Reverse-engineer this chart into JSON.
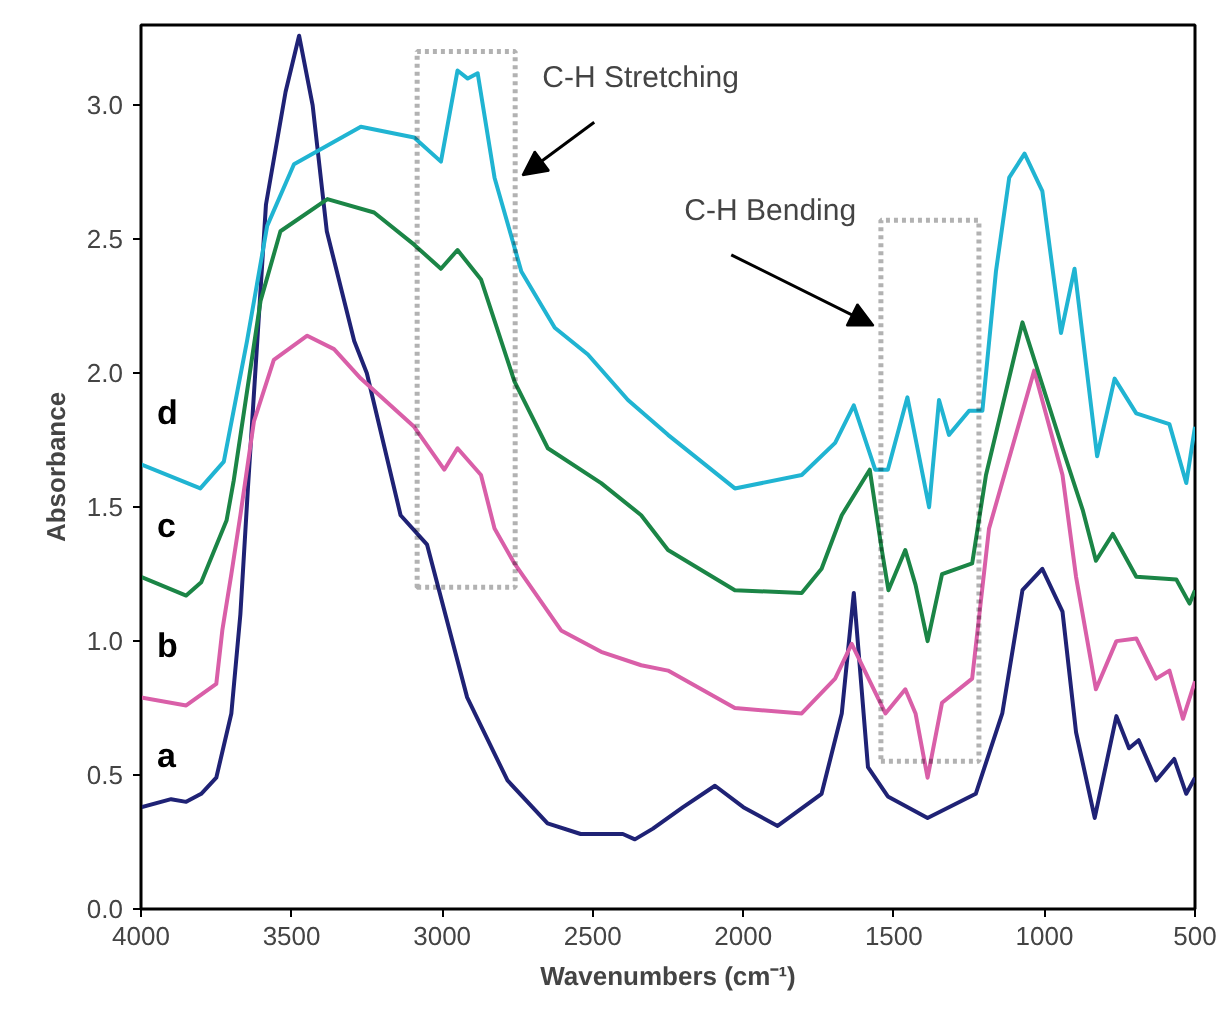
{
  "chart_data": {
    "type": "line",
    "xlabel": "Wavenumbers (cm⁻¹)",
    "ylabel": "Absorbance",
    "xlim": [
      4000,
      500
    ],
    "xticks": [
      4000,
      3500,
      3000,
      2500,
      2000,
      1500,
      1000,
      500
    ],
    "ylim": [
      0,
      3.3
    ],
    "yticks": [
      {
        "value": 0,
        "label": "0.0"
      },
      0.5,
      {
        "value": 1,
        "label": "1.0"
      },
      1.5,
      {
        "value": 2,
        "label": "2.0"
      },
      2.5,
      {
        "value": 3,
        "label": "3.0"
      }
    ],
    "grid": false,
    "legend": false,
    "marker": "none",
    "line_style": "solid",
    "series": [
      {
        "name": "a",
        "color": "#1f2275",
        "x": [
          4000,
          3900,
          3850,
          3800,
          3750,
          3700,
          3670,
          3645,
          3585,
          3520,
          3475,
          3430,
          3383,
          3292,
          3250,
          3138,
          3050,
          2917,
          2783,
          2650,
          2540,
          2400,
          2360,
          2300,
          2200,
          2094,
          2000,
          1886,
          1740,
          1673,
          1633,
          1586,
          1520,
          1388,
          1228,
          1140,
          1073,
          1007,
          940,
          895,
          833,
          761,
          719,
          687,
          629,
          569,
          529,
          500
        ],
        "values": [
          0.38,
          0.41,
          0.4,
          0.43,
          0.49,
          0.73,
          1.1,
          1.57,
          2.63,
          3.05,
          3.26,
          3.0,
          2.53,
          2.12,
          2.0,
          1.47,
          1.36,
          0.79,
          0.48,
          0.32,
          0.28,
          0.28,
          0.26,
          0.3,
          0.38,
          0.46,
          0.38,
          0.31,
          0.43,
          0.73,
          1.18,
          0.53,
          0.42,
          0.34,
          0.43,
          0.73,
          1.19,
          1.27,
          1.11,
          0.66,
          0.34,
          0.72,
          0.6,
          0.63,
          0.48,
          0.56,
          0.43,
          0.49
        ]
      },
      {
        "name": "b",
        "color": "#d95fa8",
        "x": [
          4000,
          3850,
          3800,
          3750,
          3730,
          3700,
          3670,
          3625,
          3559,
          3448,
          3359,
          3270,
          3093,
          2993,
          2949,
          2871,
          2826,
          2760,
          2605,
          2472,
          2339,
          2250,
          2028,
          1806,
          1695,
          1640,
          1584,
          1528,
          1462,
          1428,
          1388,
          1340,
          1240,
          1184,
          1034,
          940,
          895,
          829,
          761,
          695,
          629,
          585,
          540,
          500
        ],
        "values": [
          0.79,
          0.76,
          0.8,
          0.84,
          1.04,
          1.25,
          1.47,
          1.82,
          2.05,
          2.14,
          2.09,
          1.98,
          1.8,
          1.64,
          1.72,
          1.62,
          1.42,
          1.29,
          1.04,
          0.96,
          0.91,
          0.89,
          0.75,
          0.73,
          0.86,
          0.99,
          0.86,
          0.73,
          0.82,
          0.73,
          0.49,
          0.77,
          0.86,
          1.42,
          2.01,
          1.62,
          1.24,
          0.82,
          1.0,
          1.01,
          0.86,
          0.89,
          0.71,
          0.85
        ]
      },
      {
        "name": "c",
        "color": "#1b8546",
        "x": [
          4000,
          3850,
          3800,
          3716,
          3692,
          3603,
          3537,
          3381,
          3226,
          3093,
          3004,
          2949,
          2871,
          2760,
          2649,
          2472,
          2339,
          2250,
          2028,
          1806,
          1740,
          1673,
          1580,
          1540,
          1518,
          1462,
          1428,
          1388,
          1340,
          1240,
          1194,
          1073,
          940,
          873,
          829,
          773,
          695,
          562,
          518,
          500
        ],
        "values": [
          1.24,
          1.17,
          1.22,
          1.45,
          1.6,
          2.27,
          2.53,
          2.65,
          2.6,
          2.48,
          2.39,
          2.46,
          2.35,
          1.97,
          1.72,
          1.59,
          1.47,
          1.34,
          1.19,
          1.18,
          1.27,
          1.47,
          1.64,
          1.34,
          1.19,
          1.34,
          1.21,
          1.0,
          1.25,
          1.29,
          1.62,
          2.19,
          1.72,
          1.49,
          1.3,
          1.4,
          1.24,
          1.23,
          1.14,
          1.19
        ]
      },
      {
        "name": "d",
        "color": "#20b4d2",
        "x": [
          4000,
          3803,
          3725,
          3648,
          3581,
          3492,
          3270,
          3093,
          3004,
          2949,
          2915,
          2882,
          2826,
          2737,
          2626,
          2516,
          2383,
          2250,
          2028,
          1806,
          1695,
          1633,
          1562,
          1520,
          1455,
          1383,
          1350,
          1317,
          1250,
          1206,
          1161,
          1117,
          1066,
          1007,
          945,
          900,
          825,
          767,
          695,
          585,
          529,
          500
        ],
        "values": [
          1.66,
          1.57,
          1.67,
          2.12,
          2.55,
          2.78,
          2.92,
          2.88,
          2.79,
          3.13,
          3.1,
          3.12,
          2.73,
          2.38,
          2.17,
          2.07,
          1.9,
          1.77,
          1.57,
          1.62,
          1.74,
          1.88,
          1.64,
          1.64,
          1.91,
          1.5,
          1.9,
          1.77,
          1.86,
          1.86,
          2.38,
          2.73,
          2.82,
          2.68,
          2.15,
          2.39,
          1.69,
          1.98,
          1.85,
          1.81,
          1.59,
          1.8
        ]
      }
    ],
    "annotations": [
      "C-H Stretching",
      "C-H Bending"
    ]
  }
}
